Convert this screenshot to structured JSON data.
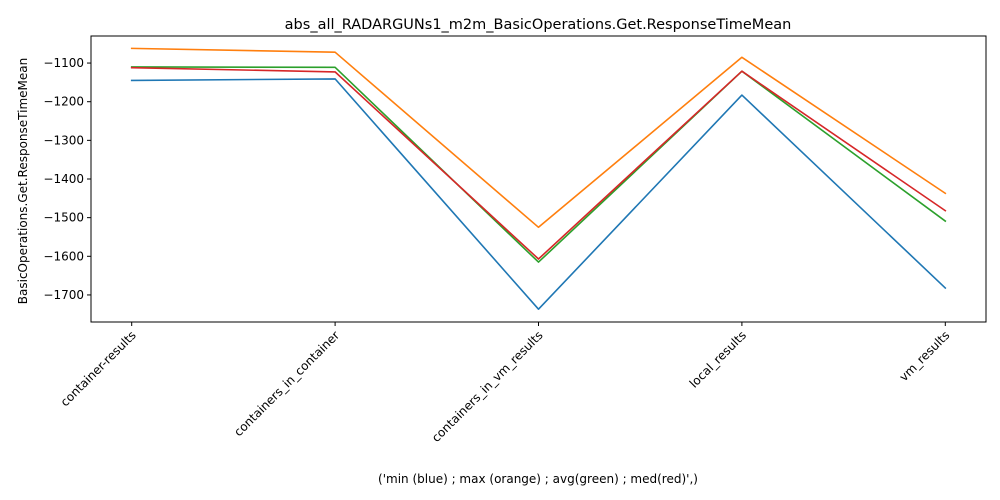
{
  "chart_data": {
    "type": "line",
    "title": "abs_all_RADARGUNs1_m2m_BasicOperations.Get.ResponseTimeMean",
    "xlabel": "('min (blue) ; max (orange) ; avg(green) ; med(red)',)",
    "ylabel": "BasicOperations.Get.ResponseTimeMean",
    "categories": [
      "container-results",
      "containers_in_container",
      "containers_in_vm_results",
      "local_results",
      "vm_results"
    ],
    "ylim": [
      -1770,
      -1030
    ],
    "yticks": [
      -1100,
      -1200,
      -1300,
      -1400,
      -1500,
      -1600,
      -1700
    ],
    "grid": false,
    "series": [
      {
        "color": "#1f77b4",
        "values": [
          -1145,
          -1141,
          -1737,
          -1183,
          -1682
        ]
      },
      {
        "color": "#ff7f0e",
        "values": [
          -1062,
          -1072,
          -1525,
          -1085,
          -1437
        ]
      },
      {
        "color": "#2ca02c",
        "values": [
          -1110,
          -1111,
          -1615,
          -1121,
          -1509
        ]
      },
      {
        "color": "#d62728",
        "values": [
          -1112,
          -1123,
          -1607,
          -1121,
          -1482
        ]
      }
    ]
  }
}
